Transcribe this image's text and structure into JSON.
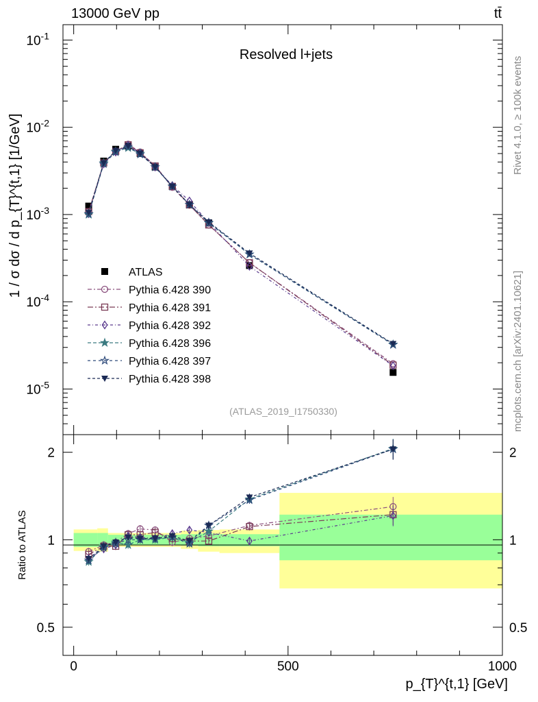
{
  "header": {
    "energy_label": "13000 GeV pp",
    "process_label": "tt̄"
  },
  "side_labels": {
    "rivet": "Rivet 4.1.0, ≥ 100k events",
    "site": "mcplots.cern.ch [arXiv:2401.10621]"
  },
  "chart_data": [
    {
      "type": "scatter",
      "panel": "main",
      "title": "Resolved l+jets",
      "watermark": "(ATLAS_2019_I1750330)",
      "ylabel": "1 / σ dσ / d p_{T}^{t,1} [1/GeV]",
      "yscale": "log",
      "ylim": [
        3e-06,
        0.15
      ],
      "xlim": [
        -25,
        1000
      ],
      "y_tick_labels": [
        "10^-5",
        "10^-4",
        "10^-3",
        "10^-2",
        "10^-1"
      ],
      "x": [
        35,
        70,
        98,
        127,
        155,
        190,
        230,
        270,
        315,
        410,
        745
      ],
      "series": [
        {
          "name": "ATLAS",
          "color": "#000000",
          "marker": "square-filled",
          "values": [
            0.00125,
            0.0041,
            0.0056,
            0.0061,
            0.005,
            0.0035,
            0.0021,
            0.0013,
            0.0008,
            0.00026,
            1.55e-05
          ]
        },
        {
          "name": "Pythia 6.428 390",
          "color": "#8a4f7d",
          "marker": "circle-open",
          "values": [
            0.00108,
            0.0039,
            0.0053,
            0.0064,
            0.0052,
            0.0036,
            0.00205,
            0.00128,
            0.00076,
            0.00028,
            1.95e-05
          ]
        },
        {
          "name": "Pythia 6.428 391",
          "color": "#7a3b55",
          "marker": "square-open",
          "values": [
            0.00108,
            0.0039,
            0.0053,
            0.0063,
            0.0051,
            0.0036,
            0.0021,
            0.00129,
            0.00076,
            0.00028,
            1.88e-05
          ]
        },
        {
          "name": "Pythia 6.428 392",
          "color": "#5a3a8e",
          "marker": "diamond-open",
          "values": [
            0.00102,
            0.0038,
            0.0052,
            0.0062,
            0.0051,
            0.0035,
            0.00215,
            0.00143,
            0.00081,
            0.000255,
            1.85e-05
          ]
        },
        {
          "name": "Pythia 6.428 396",
          "color": "#3a7a80",
          "marker": "star-filled",
          "values": [
            0.001,
            0.0039,
            0.0053,
            0.0058,
            0.005,
            0.0035,
            0.0021,
            0.0013,
            0.0008,
            0.00035,
            3.25e-05
          ]
        },
        {
          "name": "Pythia 6.428 397",
          "color": "#2e4a7a",
          "marker": "star-open",
          "values": [
            0.00102,
            0.0038,
            0.0052,
            0.006,
            0.0049,
            0.0035,
            0.0021,
            0.0013,
            0.00081,
            0.00035,
            3.22e-05
          ]
        },
        {
          "name": "Pythia 6.428 398",
          "color": "#1b2a55",
          "marker": "triangle-down-filled",
          "values": [
            0.00105,
            0.0039,
            0.0054,
            0.0061,
            0.005,
            0.0035,
            0.0021,
            0.0013,
            0.00082,
            0.00036,
            3.3e-05
          ]
        }
      ]
    },
    {
      "type": "scatter",
      "panel": "ratio",
      "ylabel": "Ratio to ATLAS",
      "xlabel": "p_{T}^{t,1} [GeV]",
      "ylim": [
        0.4,
        2.3
      ],
      "xlim": [
        -25,
        1000
      ],
      "y_tick_labels": [
        "0.5",
        "1",
        "2"
      ],
      "x_tick_labels": [
        "0",
        "500",
        "1000"
      ],
      "x": [
        35,
        70,
        98,
        127,
        155,
        190,
        230,
        270,
        315,
        410,
        745
      ],
      "bins": [
        {
          "lo": 0,
          "hi": 55,
          "green": [
            0.945,
            1.055
          ],
          "yellow": [
            0.915,
            1.085
          ]
        },
        {
          "lo": 55,
          "hi": 80,
          "green": [
            0.945,
            1.055
          ],
          "yellow": [
            0.91,
            1.095
          ]
        },
        {
          "lo": 80,
          "hi": 250,
          "green": [
            0.96,
            1.04
          ],
          "yellow": [
            0.945,
            1.055
          ]
        },
        {
          "lo": 250,
          "hi": 290,
          "green": [
            0.955,
            1.045
          ],
          "yellow": [
            0.93,
            1.075
          ]
        },
        {
          "lo": 290,
          "hi": 340,
          "green": [
            0.95,
            1.05
          ],
          "yellow": [
            0.91,
            1.08
          ]
        },
        {
          "lo": 340,
          "hi": 480,
          "green": [
            0.95,
            1.045
          ],
          "yellow": [
            0.9,
            1.085
          ]
        },
        {
          "lo": 480,
          "hi": 1000,
          "green": [
            0.85,
            1.22
          ],
          "yellow": [
            0.68,
            1.45
          ]
        }
      ],
      "series": [
        {
          "name": "Pythia 6.428 390",
          "values": [
            0.91,
            0.96,
            0.98,
            1.05,
            1.09,
            1.08,
            0.98,
            1.01,
            1.03,
            1.12,
            1.3
          ]
        },
        {
          "name": "Pythia 6.428 391",
          "values": [
            0.89,
            0.95,
            0.95,
            1.04,
            1.04,
            1.06,
            1.01,
            0.99,
            0.99,
            1.11,
            1.22
          ]
        },
        {
          "name": "Pythia 6.428 392",
          "values": [
            0.86,
            0.93,
            0.96,
            1.03,
            1.02,
            1.01,
            1.05,
            1.08,
            1.06,
            0.99,
            1.21
          ]
        },
        {
          "name": "Pythia 6.428 396",
          "values": [
            0.84,
            0.95,
            0.98,
            0.96,
            1.0,
            1.0,
            1.02,
            0.98,
            1.07,
            1.38,
            2.06
          ]
        },
        {
          "name": "Pythia 6.428 397",
          "values": [
            0.85,
            0.94,
            0.97,
            1.0,
            1.0,
            1.01,
            1.02,
            0.97,
            1.12,
            1.37,
            2.05
          ]
        },
        {
          "name": "Pythia 6.428 398",
          "values": [
            0.86,
            0.95,
            0.98,
            1.02,
            1.01,
            1.01,
            1.03,
            0.99,
            1.12,
            1.4,
            2.05
          ]
        }
      ]
    }
  ]
}
